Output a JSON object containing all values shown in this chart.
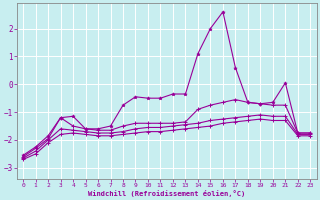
{
  "xlabel": "Windchill (Refroidissement éolien,°C)",
  "xlim": [
    -0.5,
    23.5
  ],
  "ylim": [
    -3.4,
    2.9
  ],
  "xticks": [
    0,
    1,
    2,
    3,
    4,
    5,
    6,
    7,
    8,
    9,
    10,
    11,
    12,
    13,
    14,
    15,
    16,
    17,
    18,
    19,
    20,
    21,
    22,
    23
  ],
  "yticks": [
    -3,
    -2,
    -1,
    0,
    1,
    2
  ],
  "bg_color": "#c8eef0",
  "line_color": "#990099",
  "grid_color": "#ffffff",
  "curve1": [
    [
      0,
      -2.55
    ],
    [
      1,
      -2.25
    ],
    [
      2,
      -1.85
    ],
    [
      3,
      -1.2
    ],
    [
      4,
      -1.15
    ],
    [
      5,
      -1.6
    ],
    [
      6,
      -1.6
    ],
    [
      7,
      -1.5
    ],
    [
      8,
      -0.75
    ],
    [
      9,
      -0.45
    ],
    [
      10,
      -0.5
    ],
    [
      11,
      -0.5
    ],
    [
      12,
      -0.35
    ],
    [
      13,
      -0.35
    ],
    [
      14,
      1.1
    ],
    [
      15,
      2.0
    ],
    [
      16,
      2.6
    ],
    [
      17,
      0.6
    ],
    [
      18,
      -0.65
    ],
    [
      19,
      -0.7
    ],
    [
      20,
      -0.65
    ],
    [
      21,
      0.05
    ],
    [
      22,
      -1.75
    ],
    [
      23,
      -1.75
    ]
  ],
  "curve2": [
    [
      0,
      -2.6
    ],
    [
      1,
      -2.3
    ],
    [
      2,
      -1.95
    ],
    [
      3,
      -1.2
    ],
    [
      4,
      -1.5
    ],
    [
      5,
      -1.6
    ],
    [
      6,
      -1.65
    ],
    [
      7,
      -1.65
    ],
    [
      8,
      -1.5
    ],
    [
      9,
      -1.4
    ],
    [
      10,
      -1.4
    ],
    [
      11,
      -1.4
    ],
    [
      12,
      -1.4
    ],
    [
      13,
      -1.35
    ],
    [
      14,
      -0.9
    ],
    [
      15,
      -0.75
    ],
    [
      16,
      -0.65
    ],
    [
      17,
      -0.55
    ],
    [
      18,
      -0.65
    ],
    [
      19,
      -0.7
    ],
    [
      20,
      -0.75
    ],
    [
      21,
      -0.75
    ],
    [
      22,
      -1.75
    ],
    [
      23,
      -1.75
    ]
  ],
  "curve3": [
    [
      0,
      -2.65
    ],
    [
      1,
      -2.4
    ],
    [
      2,
      -2.0
    ],
    [
      3,
      -1.6
    ],
    [
      4,
      -1.65
    ],
    [
      5,
      -1.7
    ],
    [
      6,
      -1.75
    ],
    [
      7,
      -1.75
    ],
    [
      8,
      -1.7
    ],
    [
      9,
      -1.6
    ],
    [
      10,
      -1.55
    ],
    [
      11,
      -1.55
    ],
    [
      12,
      -1.5
    ],
    [
      13,
      -1.45
    ],
    [
      14,
      -1.4
    ],
    [
      15,
      -1.3
    ],
    [
      16,
      -1.25
    ],
    [
      17,
      -1.2
    ],
    [
      18,
      -1.15
    ],
    [
      19,
      -1.1
    ],
    [
      20,
      -1.15
    ],
    [
      21,
      -1.15
    ],
    [
      22,
      -1.8
    ],
    [
      23,
      -1.8
    ]
  ],
  "curve4": [
    [
      0,
      -2.7
    ],
    [
      1,
      -2.5
    ],
    [
      2,
      -2.1
    ],
    [
      3,
      -1.8
    ],
    [
      4,
      -1.75
    ],
    [
      5,
      -1.8
    ],
    [
      6,
      -1.85
    ],
    [
      7,
      -1.85
    ],
    [
      8,
      -1.8
    ],
    [
      9,
      -1.75
    ],
    [
      10,
      -1.7
    ],
    [
      11,
      -1.7
    ],
    [
      12,
      -1.65
    ],
    [
      13,
      -1.6
    ],
    [
      14,
      -1.55
    ],
    [
      15,
      -1.5
    ],
    [
      16,
      -1.4
    ],
    [
      17,
      -1.35
    ],
    [
      18,
      -1.3
    ],
    [
      19,
      -1.25
    ],
    [
      20,
      -1.3
    ],
    [
      21,
      -1.3
    ],
    [
      22,
      -1.85
    ],
    [
      23,
      -1.85
    ]
  ]
}
